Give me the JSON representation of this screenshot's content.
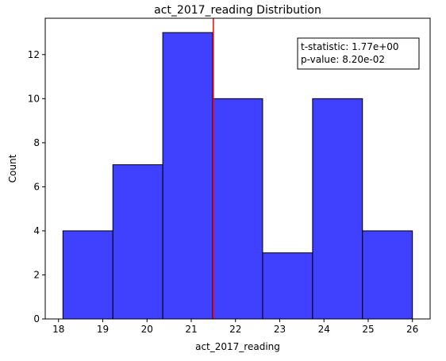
{
  "chart_data": {
    "type": "histogram",
    "title": "act_2017_reading Distribution",
    "xlabel": "act_2017_reading",
    "ylabel": "Count",
    "xlim": [
      17.7,
      26.4
    ],
    "ylim": [
      0,
      13.65
    ],
    "bins": [
      {
        "x0": 18.1,
        "x1": 19.229,
        "count": 4
      },
      {
        "x0": 19.229,
        "x1": 20.357,
        "count": 7
      },
      {
        "x0": 20.357,
        "x1": 21.486,
        "count": 13
      },
      {
        "x0": 21.486,
        "x1": 22.614,
        "count": 10
      },
      {
        "x0": 22.614,
        "x1": 23.743,
        "count": 3
      },
      {
        "x0": 23.743,
        "x1": 24.871,
        "count": 10
      },
      {
        "x0": 24.871,
        "x1": 26.0,
        "count": 4
      }
    ],
    "xticks": [
      18,
      19,
      20,
      21,
      22,
      23,
      24,
      25,
      26
    ],
    "yticks": [
      0,
      2,
      4,
      6,
      8,
      10,
      12
    ],
    "bar_color": "#4040ff",
    "bar_edge_color": "#000000",
    "vline": {
      "x": 21.5,
      "color": "#ff0000"
    },
    "annotation": {
      "lines": [
        "t-statistic:  1.77e+00",
        "p-value:  8.20e-02"
      ],
      "position": "top-right"
    }
  }
}
